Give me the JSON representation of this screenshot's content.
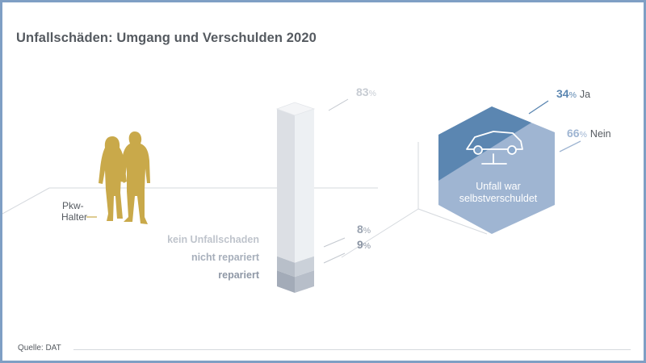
{
  "title": "Unfallschäden: Umgang und Verschulden 2020",
  "source": "Quelle: DAT",
  "owner_label_line1": "Pkw-",
  "owner_label_line2": "Halter",
  "hexagon_label_line1": "Unfall war",
  "hexagon_label_line2": "selbstverschuldet",
  "colors": {
    "gold": "#c9a94a",
    "light_gray": "#bfc4cc",
    "mid_gray": "#a7afbb",
    "dark_gray": "#8f98a6",
    "blue_dark": "#5b86b1",
    "blue_light": "#9fb5d2"
  },
  "chart_data": [
    {
      "type": "bar",
      "categories": [
        "kein Unfallschaden",
        "nicht repariert",
        "repariert"
      ],
      "values": [
        83,
        8,
        9
      ],
      "value_labels": [
        "83%",
        "8%",
        "9%"
      ],
      "stacked": true
    },
    {
      "type": "pie",
      "categories": [
        "Ja",
        "Nein"
      ],
      "values": [
        34,
        66
      ],
      "value_labels": [
        "34%",
        "66%"
      ]
    }
  ]
}
